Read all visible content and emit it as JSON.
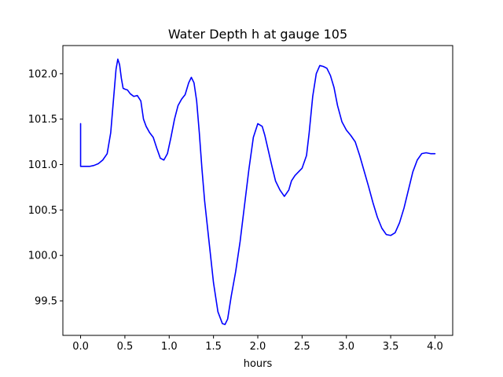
{
  "chart_data": {
    "type": "line",
    "title": "Water Depth h at gauge 105",
    "xlabel": "hours",
    "ylabel": "",
    "xlim": [
      -0.2,
      4.2
    ],
    "ylim": [
      99.12,
      102.31
    ],
    "xticks": [
      0.0,
      0.5,
      1.0,
      1.5,
      2.0,
      2.5,
      3.0,
      3.5,
      4.0
    ],
    "xtick_labels": [
      "0.0",
      "0.5",
      "1.0",
      "1.5",
      "2.0",
      "2.5",
      "3.0",
      "3.5",
      "4.0"
    ],
    "yticks": [
      99.5,
      100.0,
      100.5,
      101.0,
      101.5,
      102.0
    ],
    "ytick_labels": [
      "99.5",
      "100.0",
      "100.5",
      "101.0",
      "101.5",
      "102.0"
    ],
    "grid": false,
    "legend": "none",
    "line_color": "#0000ff",
    "series": [
      {
        "x": [
          0.0,
          0.0,
          0.0,
          0.05,
          0.1,
          0.15,
          0.2,
          0.25,
          0.3,
          0.34,
          0.37,
          0.4,
          0.42,
          0.44,
          0.46,
          0.48,
          0.5,
          0.53,
          0.56,
          0.6,
          0.64,
          0.68,
          0.71,
          0.74,
          0.78,
          0.82,
          0.86,
          0.9,
          0.94,
          0.98,
          1.02,
          1.06,
          1.1,
          1.14,
          1.18,
          1.22,
          1.25,
          1.28,
          1.31,
          1.34,
          1.37,
          1.4,
          1.45,
          1.5,
          1.55,
          1.6,
          1.63,
          1.66,
          1.7,
          1.75,
          1.8,
          1.85,
          1.9,
          1.95,
          2.0,
          2.05,
          2.08,
          2.12,
          2.16,
          2.2,
          2.25,
          2.3,
          2.35,
          2.38,
          2.42,
          2.46,
          2.5,
          2.55,
          2.58,
          2.62,
          2.66,
          2.7,
          2.74,
          2.78,
          2.82,
          2.86,
          2.9,
          2.95,
          3.0,
          3.05,
          3.1,
          3.15,
          3.2,
          3.25,
          3.3,
          3.35,
          3.4,
          3.45,
          3.5,
          3.55,
          3.6,
          3.65,
          3.7,
          3.75,
          3.8,
          3.85,
          3.9,
          3.95,
          4.0
        ],
        "y": [
          101.45,
          101.2,
          100.98,
          100.98,
          100.98,
          100.99,
          101.01,
          101.05,
          101.12,
          101.35,
          101.7,
          102.05,
          102.16,
          102.1,
          101.95,
          101.84,
          101.83,
          101.82,
          101.78,
          101.75,
          101.76,
          101.7,
          101.5,
          101.42,
          101.35,
          101.3,
          101.18,
          101.07,
          101.05,
          101.12,
          101.3,
          101.5,
          101.65,
          101.72,
          101.77,
          101.9,
          101.96,
          101.9,
          101.7,
          101.35,
          100.95,
          100.6,
          100.15,
          99.7,
          99.38,
          99.25,
          99.24,
          99.3,
          99.55,
          99.82,
          100.15,
          100.55,
          100.95,
          101.3,
          101.45,
          101.42,
          101.32,
          101.15,
          100.98,
          100.82,
          100.72,
          100.65,
          100.72,
          100.82,
          100.88,
          100.92,
          100.96,
          101.1,
          101.35,
          101.75,
          102.0,
          102.09,
          102.08,
          102.06,
          101.98,
          101.85,
          101.65,
          101.47,
          101.38,
          101.32,
          101.25,
          101.1,
          100.93,
          100.76,
          100.58,
          100.42,
          100.3,
          100.23,
          100.22,
          100.25,
          100.36,
          100.52,
          100.72,
          100.92,
          101.05,
          101.12,
          101.13,
          101.12,
          101.12
        ]
      }
    ]
  }
}
